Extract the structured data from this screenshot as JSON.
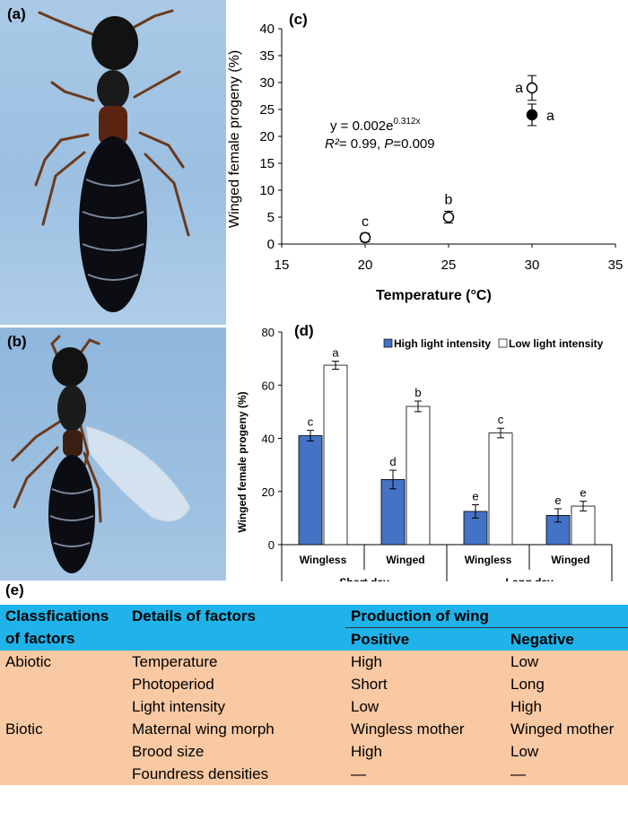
{
  "panels": {
    "a_label": "(a)",
    "b_label": "(b)",
    "c_label": "(c)",
    "d_label": "(d)",
    "e_label": "(e)"
  },
  "chart_data": [
    {
      "type": "scatter",
      "panel": "(c)",
      "xlabel": "Temperature (°C)",
      "ylabel": "Winged female progeny (%)",
      "xlim": [
        15,
        35
      ],
      "ylim": [
        0,
        40
      ],
      "xticks": [
        15,
        20,
        25,
        30,
        35
      ],
      "yticks": [
        0,
        5,
        10,
        15,
        20,
        25,
        30,
        35,
        40
      ],
      "points": [
        {
          "x": 20,
          "y": 1.2,
          "err": 0.8,
          "filled": false,
          "letter": "c"
        },
        {
          "x": 25,
          "y": 5.0,
          "err": 1.1,
          "filled": false,
          "letter": "b"
        },
        {
          "x": 30,
          "y": 29.0,
          "err": 2.3,
          "filled": false,
          "letter": "a"
        },
        {
          "x": 30,
          "y": 24.0,
          "err": 2.0,
          "filled": true,
          "letter": "a"
        }
      ],
      "fit": {
        "a": 0.002,
        "b": 0.312,
        "x_from": 18,
        "x_to": 31
      },
      "equation": {
        "prefix": "y = 0.002e",
        "exponent": "0.312x"
      },
      "stats": {
        "r2_label": "R²",
        "r2_rest": "= 0.99, ",
        "p_label": "P",
        "p_rest": "=0.009"
      },
      "grid": false
    },
    {
      "type": "bar",
      "panel": "(d)",
      "ylabel": "Winged female progeny (%)",
      "ylim": [
        0,
        80
      ],
      "yticks": [
        0,
        20,
        40,
        60,
        80
      ],
      "categories": [
        "Wingless",
        "Winged",
        "Wingless",
        "Winged"
      ],
      "groups": [
        "Short day",
        "Long day"
      ],
      "series": [
        {
          "name": "High light intensity",
          "color": "#4472c4",
          "values": [
            41,
            24.5,
            12.5,
            11
          ],
          "errors": [
            2,
            3.5,
            2.5,
            2.5
          ],
          "letters": [
            "c",
            "d",
            "e",
            "e"
          ]
        },
        {
          "name": "Low light intensity",
          "color": "#ffffff",
          "values": [
            67.5,
            52,
            42,
            14.5
          ],
          "errors": [
            1.5,
            2,
            1.8,
            1.8
          ],
          "letters": [
            "a",
            "b",
            "c",
            "e"
          ]
        }
      ],
      "legend": "top"
    }
  ],
  "table": {
    "header1": {
      "col1": "Classfications",
      "col2": "Details of factors",
      "col3": "Production of wing"
    },
    "header2": {
      "col1": "of factors",
      "col3": "Positive",
      "col4": "Negative"
    },
    "rows": [
      {
        "cls": "Abiotic",
        "detail": "Temperature",
        "pos": "High",
        "neg": "Low"
      },
      {
        "cls": "",
        "detail": "Photoperiod",
        "pos": "Short",
        "neg": "Long"
      },
      {
        "cls": "",
        "detail": "Light intensity",
        "pos": "Low",
        "neg": "High"
      },
      {
        "cls": "Biotic",
        "detail": "Maternal wing morph",
        "pos": "Wingless mother",
        "neg": "Winged mother"
      },
      {
        "cls": "",
        "detail": "Brood size",
        "pos": "High",
        "neg": "Low"
      },
      {
        "cls": "",
        "detail": "Foundress densities",
        "pos": "—",
        "neg": "—"
      }
    ]
  },
  "colors": {
    "table_header": "#1fb3ea",
    "table_body": "#f9c9a3",
    "bar_blue": "#4472c4"
  }
}
